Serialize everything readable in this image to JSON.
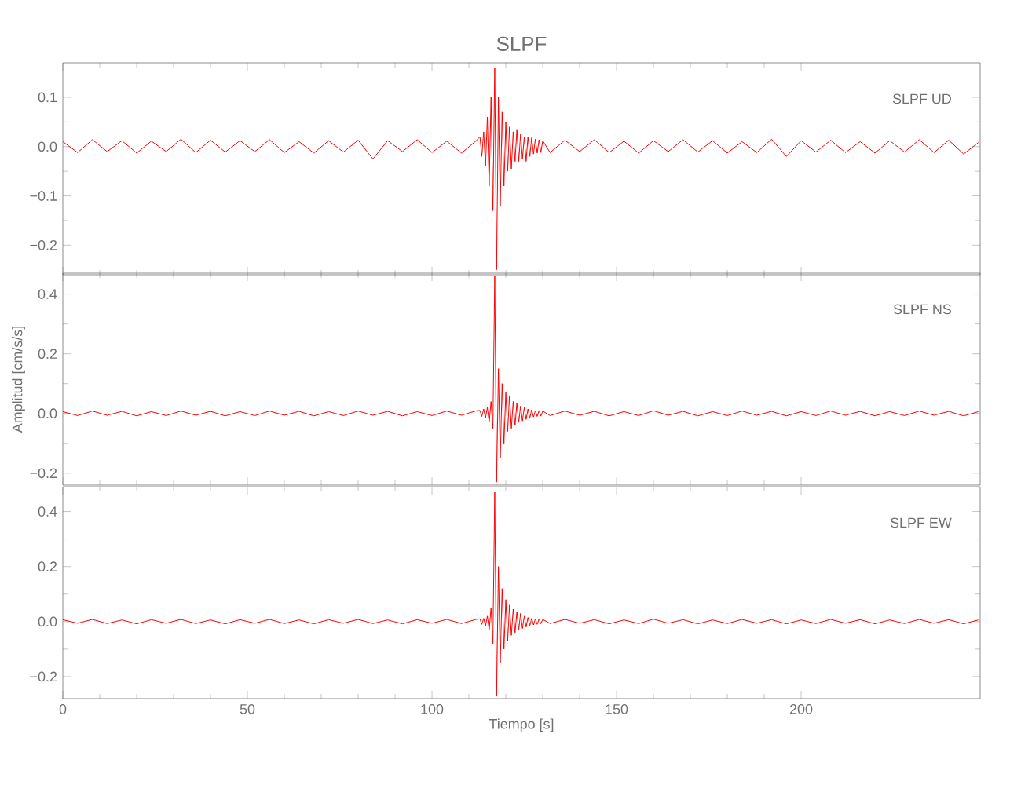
{
  "chart_data": [
    {
      "type": "line",
      "title": "SLPF",
      "annotations": [
        "SLPF   UD"
      ],
      "tick_labels": "y",
      "x": [
        0,
        4,
        8,
        12,
        16,
        20,
        24,
        28,
        32,
        36,
        40,
        44,
        48,
        52,
        56,
        60,
        64,
        68,
        72,
        76,
        80,
        84,
        88,
        92,
        96,
        100,
        104,
        108,
        112,
        113,
        113.5,
        114,
        114.5,
        115,
        115.5,
        116,
        116.5,
        117,
        117.5,
        118,
        118.5,
        119,
        119.5,
        120,
        120.5,
        121,
        121.5,
        122,
        122.5,
        123,
        123.5,
        124,
        124.5,
        125,
        125.5,
        126,
        126.5,
        127,
        127.5,
        128,
        128.5,
        129,
        129.5,
        130,
        132,
        136,
        140,
        144,
        148,
        152,
        156,
        160,
        164,
        168,
        172,
        176,
        180,
        184,
        188,
        192,
        196,
        200,
        204,
        208,
        212,
        216,
        220,
        224,
        228,
        232,
        236,
        240,
        244,
        248
      ],
      "series": [
        {
          "color": "#ff0000",
          "values": [
            0.01,
            -0.012,
            0.014,
            -0.01,
            0.012,
            -0.013,
            0.011,
            -0.01,
            0.015,
            -0.012,
            0.013,
            -0.011,
            0.012,
            -0.01,
            0.014,
            -0.012,
            0.01,
            -0.013,
            0.012,
            -0.011,
            0.013,
            -0.025,
            0.012,
            -0.01,
            0.014,
            -0.012,
            0.011,
            -0.013,
            0.012,
            0.02,
            -0.02,
            0.03,
            -0.04,
            0.06,
            -0.08,
            0.1,
            -0.13,
            0.16,
            -0.25,
            0.1,
            -0.12,
            0.07,
            -0.08,
            0.05,
            -0.05,
            0.04,
            -0.045,
            0.03,
            -0.03,
            0.035,
            -0.03,
            0.025,
            -0.025,
            0.02,
            -0.03,
            0.02,
            -0.02,
            0.018,
            -0.015,
            0.015,
            -0.013,
            0.014,
            -0.012,
            0.012,
            -0.012,
            0.013,
            -0.01,
            0.014,
            -0.012,
            0.011,
            -0.013,
            0.012,
            -0.01,
            0.014,
            -0.011,
            0.012,
            -0.013,
            0.01,
            -0.012,
            0.015,
            -0.02,
            0.012,
            -0.011,
            0.013,
            -0.012,
            0.01,
            -0.013,
            0.012,
            -0.011,
            0.014,
            -0.012,
            0.013,
            -0.015,
            0.008
          ]
        }
      ],
      "xlim": [
        0,
        248.5
      ],
      "xticks": [
        0,
        50,
        100,
        150,
        200
      ],
      "ylim": [
        -0.26,
        0.17
      ],
      "yticks": [
        0.1,
        {
          "value": 0,
          "label": "0.0"
        },
        {
          "value": -0.1,
          "label": "−0.1"
        },
        {
          "value": -0.2,
          "label": "−0.2"
        }
      ]
    },
    {
      "type": "line",
      "ylabel": "Amplitud [cm/s/s]",
      "annotations": [
        "SLPF   NS"
      ],
      "tick_labels": "y",
      "x": [
        0,
        4,
        8,
        12,
        16,
        20,
        24,
        28,
        32,
        36,
        40,
        44,
        48,
        52,
        56,
        60,
        64,
        68,
        72,
        76,
        80,
        84,
        88,
        92,
        96,
        100,
        104,
        108,
        112,
        113,
        113.5,
        114,
        114.5,
        115,
        115.5,
        116,
        116.5,
        117,
        117.5,
        118,
        118.5,
        119,
        119.5,
        120,
        120.5,
        121,
        121.5,
        122,
        122.5,
        123,
        123.5,
        124,
        124.5,
        125,
        125.5,
        126,
        126.5,
        127,
        127.5,
        128,
        128.5,
        129,
        129.5,
        130,
        132,
        136,
        140,
        144,
        148,
        152,
        156,
        160,
        164,
        168,
        172,
        176,
        180,
        184,
        188,
        192,
        196,
        200,
        204,
        208,
        212,
        216,
        220,
        224,
        228,
        232,
        236,
        240,
        244,
        248
      ],
      "series": [
        {
          "color": "#ff0000",
          "values": [
            0.006,
            -0.007,
            0.008,
            -0.006,
            0.007,
            -0.008,
            0.006,
            -0.007,
            0.008,
            -0.006,
            0.007,
            -0.008,
            0.006,
            -0.007,
            0.008,
            -0.006,
            0.007,
            -0.008,
            0.006,
            -0.007,
            0.008,
            -0.006,
            0.007,
            -0.008,
            0.006,
            -0.007,
            0.008,
            -0.006,
            0.009,
            0.01,
            -0.01,
            0.015,
            -0.015,
            0.02,
            -0.03,
            0.04,
            -0.05,
            0.46,
            -0.23,
            0.15,
            -0.15,
            0.1,
            -0.1,
            0.07,
            -0.06,
            0.06,
            -0.05,
            0.04,
            -0.04,
            0.035,
            -0.03,
            0.025,
            -0.025,
            0.02,
            -0.02,
            0.015,
            -0.015,
            0.012,
            -0.012,
            0.01,
            -0.01,
            0.01,
            -0.009,
            0.008,
            -0.007,
            0.008,
            -0.006,
            0.007,
            -0.008,
            0.006,
            -0.007,
            0.009,
            -0.006,
            0.007,
            -0.008,
            0.006,
            -0.007,
            0.008,
            -0.006,
            0.007,
            -0.008,
            0.006,
            -0.007,
            0.008,
            -0.006,
            0.007,
            -0.008,
            0.006,
            -0.007,
            0.008,
            -0.006,
            0.007,
            -0.008,
            0.006
          ]
        }
      ],
      "xlim": [
        0,
        248.5
      ],
      "xticks": [
        0,
        50,
        100,
        150,
        200
      ],
      "ylim": [
        -0.24,
        0.47
      ],
      "yticks": [
        0.4,
        0.2,
        {
          "value": 0,
          "label": "0.0"
        },
        {
          "value": -0.2,
          "label": "−0.2"
        }
      ]
    },
    {
      "type": "line",
      "xlabel": "Tiempo [s]",
      "annotations": [
        "SLPF   EW"
      ],
      "x": [
        0,
        4,
        8,
        12,
        16,
        20,
        24,
        28,
        32,
        36,
        40,
        44,
        48,
        52,
        56,
        60,
        64,
        68,
        72,
        76,
        80,
        84,
        88,
        92,
        96,
        100,
        104,
        108,
        112,
        113,
        113.5,
        114,
        114.5,
        115,
        115.5,
        116,
        116.5,
        117,
        117.5,
        118,
        118.5,
        119,
        119.5,
        120,
        120.5,
        121,
        121.5,
        122,
        122.5,
        123,
        123.5,
        124,
        124.5,
        125,
        125.5,
        126,
        126.5,
        127,
        127.5,
        128,
        128.5,
        129,
        129.5,
        130,
        132,
        136,
        140,
        144,
        148,
        152,
        156,
        160,
        164,
        168,
        172,
        176,
        180,
        184,
        188,
        192,
        196,
        200,
        204,
        208,
        212,
        216,
        220,
        224,
        228,
        232,
        236,
        240,
        244,
        248
      ],
      "series": [
        {
          "color": "#ff0000",
          "values": [
            0.007,
            -0.006,
            0.008,
            -0.007,
            0.006,
            -0.008,
            0.007,
            -0.006,
            0.008,
            -0.007,
            0.006,
            -0.008,
            0.007,
            -0.006,
            0.008,
            -0.007,
            0.006,
            -0.008,
            0.007,
            -0.006,
            0.008,
            -0.007,
            0.006,
            -0.008,
            0.007,
            -0.006,
            0.008,
            -0.007,
            0.008,
            0.01,
            -0.01,
            0.012,
            -0.015,
            0.02,
            -0.03,
            0.05,
            -0.08,
            0.47,
            -0.27,
            0.2,
            -0.15,
            0.12,
            -0.1,
            0.08,
            -0.07,
            0.06,
            -0.05,
            0.045,
            -0.04,
            0.035,
            -0.03,
            0.03,
            -0.025,
            0.02,
            -0.02,
            0.015,
            -0.015,
            0.012,
            -0.012,
            0.01,
            -0.01,
            0.01,
            -0.008,
            0.008,
            -0.007,
            0.008,
            -0.006,
            0.007,
            -0.008,
            0.006,
            -0.007,
            0.009,
            -0.006,
            0.007,
            -0.008,
            0.006,
            -0.007,
            0.008,
            -0.006,
            0.007,
            -0.008,
            0.006,
            -0.007,
            0.008,
            -0.006,
            0.007,
            -0.008,
            0.006,
            -0.007,
            0.008,
            -0.006,
            0.007,
            -0.008,
            0.006
          ]
        }
      ],
      "xlim": [
        0,
        248.5
      ],
      "xticks": [
        0,
        50,
        100,
        150,
        200
      ],
      "ylim": [
        -0.28,
        0.49
      ],
      "yticks": [
        0.4,
        0.2,
        {
          "value": 0,
          "label": "0.0"
        },
        {
          "value": -0.2,
          "label": "−0.2"
        }
      ]
    }
  ]
}
